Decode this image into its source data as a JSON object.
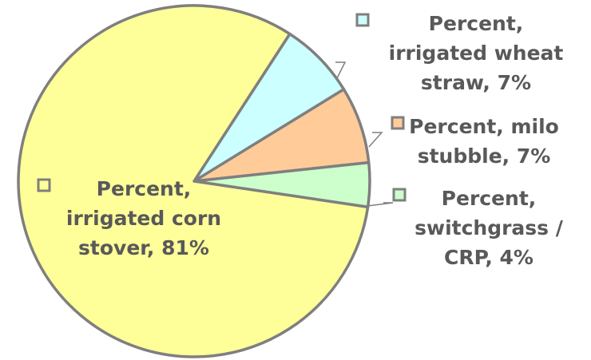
{
  "chart_data": {
    "type": "pie",
    "title": "",
    "slices": [
      {
        "label_lines": [
          "Percent,",
          "irrigated corn",
          "stover, 81%"
        ],
        "value": 81,
        "color": "#ffff99"
      },
      {
        "label_lines": [
          "Percent,",
          "irrigated wheat",
          "straw, 7%"
        ],
        "value": 7,
        "color": "#ccffff"
      },
      {
        "label_lines": [
          "Percent, milo",
          "stubble, 7%"
        ],
        "value": 7,
        "color": "#ffcc99"
      },
      {
        "label_lines": [
          "Percent,",
          "switchgrass /",
          "CRP, 4%"
        ],
        "value": 4,
        "color": "#ccffcc"
      }
    ]
  }
}
